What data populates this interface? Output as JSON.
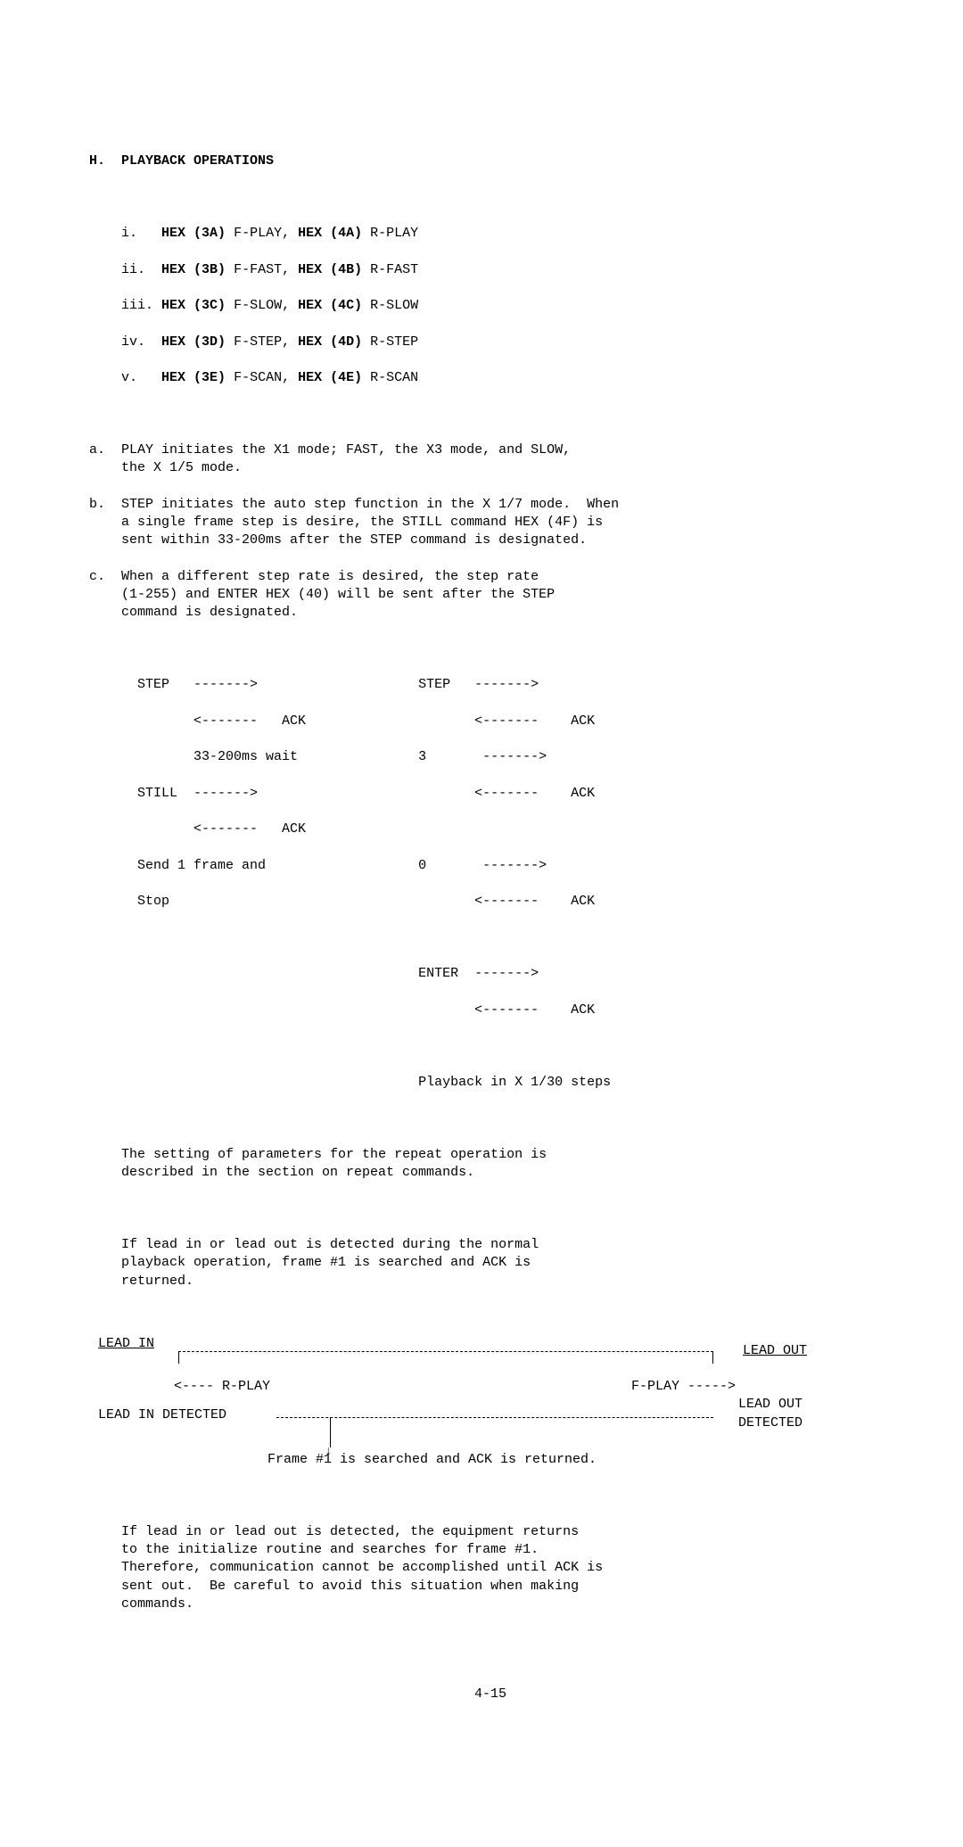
{
  "section": {
    "letter": "H.",
    "title": "PLAYBACK OPERATIONS"
  },
  "hex_list": [
    {
      "n": "i.",
      "h1": "HEX (3A)",
      "c1": "F-PLAY,",
      "h2": "HEX (4A)",
      "c2": "R-PLAY"
    },
    {
      "n": "ii.",
      "h1": "HEX (3B)",
      "c1": "F-FAST,",
      "h2": "HEX (4B)",
      "c2": "R-FAST"
    },
    {
      "n": "iii.",
      "h1": "HEX (3C)",
      "c1": "F-SLOW,",
      "h2": "HEX (4C)",
      "c2": "R-SLOW"
    },
    {
      "n": "iv.",
      "h1": "HEX (3D)",
      "c1": "F-STEP,",
      "h2": "HEX (4D)",
      "c2": "R-STEP"
    },
    {
      "n": "v.",
      "h1": "HEX (3E)",
      "c1": "F-SCAN,",
      "h2": "HEX (4E)",
      "c2": "R-SCAN"
    }
  ],
  "paras": {
    "a": "PLAY initiates the X1 mode; FAST, the X3 mode, and SLOW,\n    the X 1/5 mode.",
    "b": "STEP initiates the auto step function in the X 1/7 mode.  When\n    a single frame step is desire, the STILL command HEX (4F) is\n    sent within 33-200ms after the STEP command is designated.",
    "c": "When a different step rate is desired, the step rate\n    (1-255) and ENTER HEX (40) will be sent after the STEP\n    command is designated."
  },
  "seq": {
    "l1": "STEP   ------->",
    "l2": "       <-------   ACK",
    "l3": "       33-200ms wait",
    "l4": "STILL  ------->",
    "l5": "       <-------   ACK",
    "l6": "Send 1 frame and",
    "l7": "Stop",
    "r1": "STEP   ------->",
    "r2": "       <-------    ACK",
    "r3": "3       ------->",
    "r4": "       <-------    ACK",
    "r5": "",
    "r6": "0       ------->",
    "r7": "       <-------    ACK",
    "r8": "",
    "r9": "ENTER  ------->",
    "r10": "      <-------    ACK",
    "caption": "Playback in X 1/30 steps"
  },
  "mid1": "The setting of parameters for the repeat operation is\n    described in the section on repeat commands.",
  "mid2": "If lead in or lead out is detected during the normal\n    playback operation, frame #1 is searched and ACK is\n    returned.",
  "diagram": {
    "lead_in": "LEAD IN",
    "lead_out": "LEAD OUT",
    "rplay": "<---- R-PLAY",
    "fplay": "F-PLAY ----->",
    "lead_in_det": "LEAD IN DETECTED",
    "lead_out_det": "LEAD OUT\nDETECTED",
    "frame1": "Frame #1 is searched and ACK is returned."
  },
  "tail": "If lead in or lead out is detected, the equipment returns\n    to the initialize routine and searches for frame #1.\n    Therefore, communication cannot be accomplished until ACK is\n    sent out.  Be careful to avoid this situation when making\n    commands.",
  "page": "4-15"
}
